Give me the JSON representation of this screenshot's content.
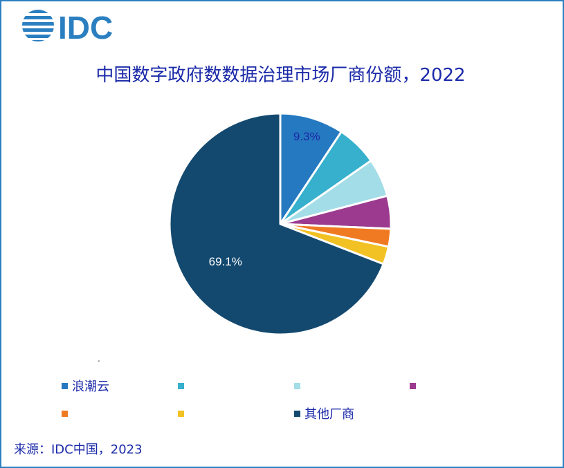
{
  "title": "中国数字政府数数据治理市场厂商份额，2022",
  "logo_text": "IDC",
  "source": "来源：IDC中国，2023",
  "dot": ".",
  "colors": {
    "accent": "#2a7fc0",
    "title": "#1b2aa8"
  },
  "chart_data": {
    "type": "pie",
    "title": "中国数字政府数数据治理市场厂商份额，2022",
    "slices": [
      {
        "label": "浪潮云",
        "value": 9.3,
        "display": "9.3%",
        "color": "#2579c0",
        "label_color": "#1b2aa8"
      },
      {
        "label": "",
        "value": 6.0,
        "display": "",
        "color": "#36b0cc",
        "label_color": ""
      },
      {
        "label": "",
        "value": 5.6,
        "display": "",
        "color": "#a3dde7",
        "label_color": ""
      },
      {
        "label": "",
        "value": 4.8,
        "display": "",
        "color": "#9b3a8e",
        "label_color": ""
      },
      {
        "label": "",
        "value": 2.6,
        "display": "",
        "color": "#f07a22",
        "label_color": ""
      },
      {
        "label": "",
        "value": 2.6,
        "display": "",
        "color": "#f2c123",
        "label_color": ""
      },
      {
        "label": "其他厂商",
        "value": 69.1,
        "display": "69.1%",
        "color": "#14496f",
        "label_color": "#ffffff"
      }
    ]
  }
}
